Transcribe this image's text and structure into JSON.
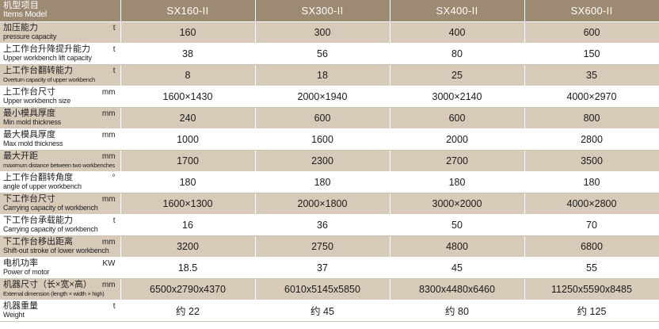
{
  "header": {
    "label_zh": "机型项目",
    "label_en": "Items Model",
    "models": [
      "SX160-II",
      "SX300-II",
      "SX400-II",
      "SX600-II"
    ]
  },
  "rows": [
    {
      "zh": "加压能力",
      "en": "pressure capacity",
      "unit": "t",
      "values": [
        "160",
        "300",
        "400",
        "600"
      ]
    },
    {
      "zh": "上工作台升降提升能力",
      "en": "Upper workbench lift capacity",
      "unit": "t",
      "values": [
        "38",
        "56",
        "80",
        "150"
      ]
    },
    {
      "zh": "上工作台翻转能力",
      "en": "Overturn  capacity of upper workbench",
      "unit": "t",
      "values": [
        "8",
        "18",
        "25",
        "35"
      ]
    },
    {
      "zh": "上工作台尺寸",
      "en": "Upper workbench size",
      "unit": "mm",
      "values": [
        "1600×1430",
        "2000×1940",
        "3000×2140",
        "4000×2970"
      ]
    },
    {
      "zh": "最小模具厚度",
      "en": "Min mold thickness",
      "unit": "mm",
      "values": [
        "240",
        "600",
        "600",
        "800"
      ]
    },
    {
      "zh": "最大模具厚度",
      "en": "Max mold thickness",
      "unit": "mm",
      "values": [
        "1000",
        "1600",
        "2000",
        "2800"
      ]
    },
    {
      "zh": "最大开距",
      "en": "maximum distance between two workbenches",
      "unit": "mm",
      "values": [
        "1700",
        "2300",
        "2700",
        "3500"
      ]
    },
    {
      "zh": "上工作台翻转角度",
      "en": "angle of upper workbench",
      "unit": "°",
      "values": [
        "180",
        "180",
        "180",
        "180"
      ]
    },
    {
      "zh": "下工作台尺寸",
      "en": "Carrying capacity of workbench",
      "unit": "mm",
      "values": [
        "1600×1300",
        "2000×1800",
        "3000×2000",
        "4000×2800"
      ]
    },
    {
      "zh": "下工作台承载能力",
      "en": " Carrying capacity of workbench",
      "unit": "t",
      "values": [
        "16",
        "36",
        "50",
        "70"
      ]
    },
    {
      "zh": "下工作台移出距离",
      "en": "Shift-out stroke of lower workbench",
      "unit": "mm",
      "values": [
        "3200",
        "2750",
        "4800",
        "6800"
      ]
    },
    {
      "zh": "电机功率",
      "en": "Power of motor",
      "unit": "KW",
      "values": [
        "18.5",
        "37",
        "45",
        "55"
      ]
    },
    {
      "zh": "机器尺寸（长×宽×高）",
      "en": "External dimension (length × width × high)",
      "unit": "mm",
      "values": [
        "6500x2790x4370",
        "6010x5145x5850",
        "8300x4480x6460",
        "11250x5590x8485"
      ]
    },
    {
      "zh": "机器重量",
      "en": "Weight",
      "unit": "t",
      "values": [
        "约 22",
        "约 45",
        "约 80",
        "约 125"
      ]
    }
  ]
}
